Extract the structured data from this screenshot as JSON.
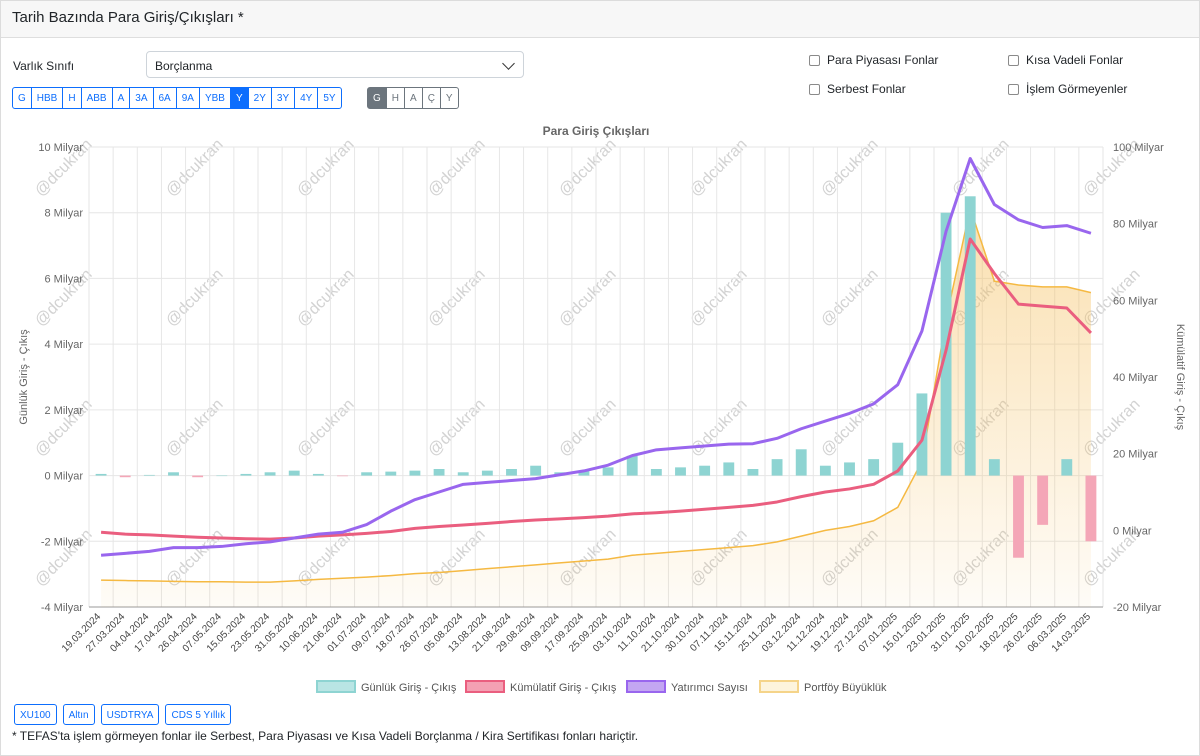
{
  "header": {
    "title": "Tarih Bazında Para Giriş/Çıkışları *"
  },
  "filters": {
    "asset_class_label": "Varlık Sınıfı",
    "asset_class_value": "Borçlanma",
    "period_buttons": [
      {
        "label": "G",
        "active": false
      },
      {
        "label": "HBB",
        "active": false
      },
      {
        "label": "H",
        "active": false
      },
      {
        "label": "ABB",
        "active": false
      },
      {
        "label": "A",
        "active": false
      },
      {
        "label": "3A",
        "active": false
      },
      {
        "label": "6A",
        "active": false
      },
      {
        "label": "9A",
        "active": false
      },
      {
        "label": "YBB",
        "active": false
      },
      {
        "label": "Y",
        "active": true
      },
      {
        "label": "2Y",
        "active": false
      },
      {
        "label": "3Y",
        "active": false
      },
      {
        "label": "4Y",
        "active": false
      },
      {
        "label": "5Y",
        "active": false
      }
    ],
    "granularity_buttons": [
      {
        "label": "G",
        "active": true
      },
      {
        "label": "H",
        "active": false
      },
      {
        "label": "A",
        "active": false
      },
      {
        "label": "Ç",
        "active": false
      },
      {
        "label": "Y",
        "active": false
      }
    ],
    "checkboxes": [
      {
        "label": "Para Piyasası Fonlar",
        "checked": false
      },
      {
        "label": "Kısa Vadeli Fonlar",
        "checked": false
      },
      {
        "label": "Serbest Fonlar",
        "checked": false
      },
      {
        "label": "İşlem Görmeyenler",
        "checked": false
      }
    ]
  },
  "colors": {
    "daily": "#8ed4d2",
    "daily_neg": "#f4a6b7",
    "cumulative": "#ea5e7f",
    "investors": "#9966ee",
    "portfolio": "#f5b942",
    "grid": "#e6e6e6",
    "watermark": "#d2d2d2",
    "primary": "#0d6efd"
  },
  "watermark_text": "@dcukran",
  "chart_data": {
    "type": "bar+line",
    "title": "Para Giriş Çıkışları",
    "ylabel_left": "Günlük Giriş - Çıkış",
    "ylabel_right": "Kümülatif Giriş - Çıkış",
    "y_left": {
      "min": -4,
      "max": 10,
      "ticks": [
        -4,
        -2,
        0,
        2,
        4,
        6,
        8,
        10
      ],
      "tick_labels": [
        "-4 Milyar",
        "-2 Milyar",
        "0 Milyar",
        "2 Milyar",
        "4 Milyar",
        "6 Milyar",
        "8 Milyar",
        "10 Milyar"
      ]
    },
    "y_right": {
      "min": -20,
      "max": 100,
      "ticks": [
        -20,
        0,
        20,
        40,
        60,
        80,
        100
      ],
      "tick_labels": [
        "-20 Milyar",
        "0 Milyar",
        "20 Milyar",
        "40 Milyar",
        "60 Milyar",
        "80 Milyar",
        "100 Milyar"
      ]
    },
    "categories": [
      "19.03.2024",
      "27.03.2024",
      "04.04.2024",
      "17.04.2024",
      "26.04.2024",
      "07.05.2024",
      "15.05.2024",
      "23.05.2024",
      "31.05.2024",
      "10.06.2024",
      "21.06.2024",
      "01.07.2024",
      "09.07.2024",
      "18.07.2024",
      "26.07.2024",
      "05.08.2024",
      "13.08.2024",
      "21.08.2024",
      "29.08.2024",
      "09.09.2024",
      "17.09.2024",
      "25.09.2024",
      "03.10.2024",
      "11.10.2024",
      "21.10.2024",
      "30.10.2024",
      "07.11.2024",
      "15.11.2024",
      "25.11.2024",
      "03.12.2024",
      "11.12.2024",
      "19.12.2024",
      "27.12.2024",
      "07.01.2025",
      "15.01.2025",
      "23.01.2025",
      "31.01.2025",
      "10.02.2025",
      "18.02.2025",
      "26.02.2025",
      "06.03.2025",
      "14.03.2025"
    ],
    "series": [
      {
        "name": "Günlük Giriş - Çıkış",
        "type": "bar",
        "axis": "left",
        "values": [
          0.05,
          -0.05,
          0.02,
          0.1,
          -0.05,
          0.0,
          0.05,
          0.1,
          0.15,
          0.05,
          -0.02,
          0.1,
          0.12,
          0.15,
          0.2,
          0.1,
          0.15,
          0.2,
          0.3,
          0.1,
          0.15,
          0.25,
          0.6,
          0.2,
          0.25,
          0.3,
          0.4,
          0.2,
          0.5,
          0.8,
          0.3,
          0.4,
          0.5,
          1.0,
          2.5,
          8.0,
          8.5,
          0.5,
          -2.5,
          -1.5,
          0.5,
          -2.0
        ]
      },
      {
        "name": "Kümülatif Giriş - Çıkış",
        "type": "line",
        "axis": "right",
        "values": [
          -0.5,
          -1.0,
          -1.2,
          -1.5,
          -1.8,
          -2.0,
          -2.2,
          -2.3,
          -2.0,
          -1.5,
          -1.2,
          -0.8,
          -0.3,
          0.5,
          1.0,
          1.4,
          1.8,
          2.3,
          2.7,
          3.0,
          3.3,
          3.7,
          4.3,
          4.6,
          5.0,
          5.5,
          6.0,
          6.5,
          7.4,
          8.8,
          10.0,
          10.8,
          12.0,
          15.5,
          23.5,
          47.0,
          76.0,
          67.0,
          59.0,
          58.5,
          58.0,
          51.5
        ]
      },
      {
        "name": "Yatırımcı Sayısı",
        "type": "line",
        "axis": "right",
        "values": [
          -6.5,
          -6.0,
          -5.5,
          -4.5,
          -4.5,
          -4.2,
          -3.5,
          -3.0,
          -2.0,
          -1.0,
          -0.5,
          1.5,
          5.0,
          8.0,
          10.0,
          12.0,
          12.5,
          13.0,
          13.5,
          14.5,
          15.5,
          17.0,
          19.5,
          21.0,
          21.5,
          22.0,
          22.5,
          22.6,
          24.0,
          26.5,
          28.5,
          30.5,
          33.0,
          38.0,
          52.0,
          78.0,
          97.0,
          85.0,
          81.0,
          79.0,
          79.5,
          77.5
        ]
      },
      {
        "name": "Portföy Büyüklük",
        "type": "area",
        "axis": "right",
        "values": [
          -13.0,
          -13.1,
          -13.2,
          -13.3,
          -13.4,
          -13.4,
          -13.5,
          -13.5,
          -13.2,
          -12.8,
          -12.5,
          -12.2,
          -11.8,
          -11.3,
          -11.0,
          -10.5,
          -10.0,
          -9.5,
          -9.0,
          -8.5,
          -8.0,
          -7.5,
          -6.5,
          -6.0,
          -5.5,
          -5.0,
          -4.5,
          -4.0,
          -3.0,
          -1.5,
          0.0,
          1.0,
          2.5,
          6.0,
          18.0,
          55.0,
          84.0,
          65.0,
          64.0,
          63.5,
          63.5,
          62.0
        ]
      }
    ],
    "legend": [
      "Günlük Giriş - Çıkış",
      "Kümülatif Giriş - Çıkış",
      "Yatırımcı Sayısı",
      "Portföy Büyüklük"
    ],
    "legend_position": "bottom"
  },
  "overlay_buttons": [
    {
      "label": "XU100"
    },
    {
      "label": "Altın"
    },
    {
      "label": "USDTRYA"
    },
    {
      "label": "CDS 5 Yıllık"
    }
  ],
  "footnote": "* TEFAS'ta işlem görmeyen fonlar ile Serbest, Para Piyasası ve Kısa Vadeli Borçlanma / Kira Sertifikası fonları hariçtir."
}
